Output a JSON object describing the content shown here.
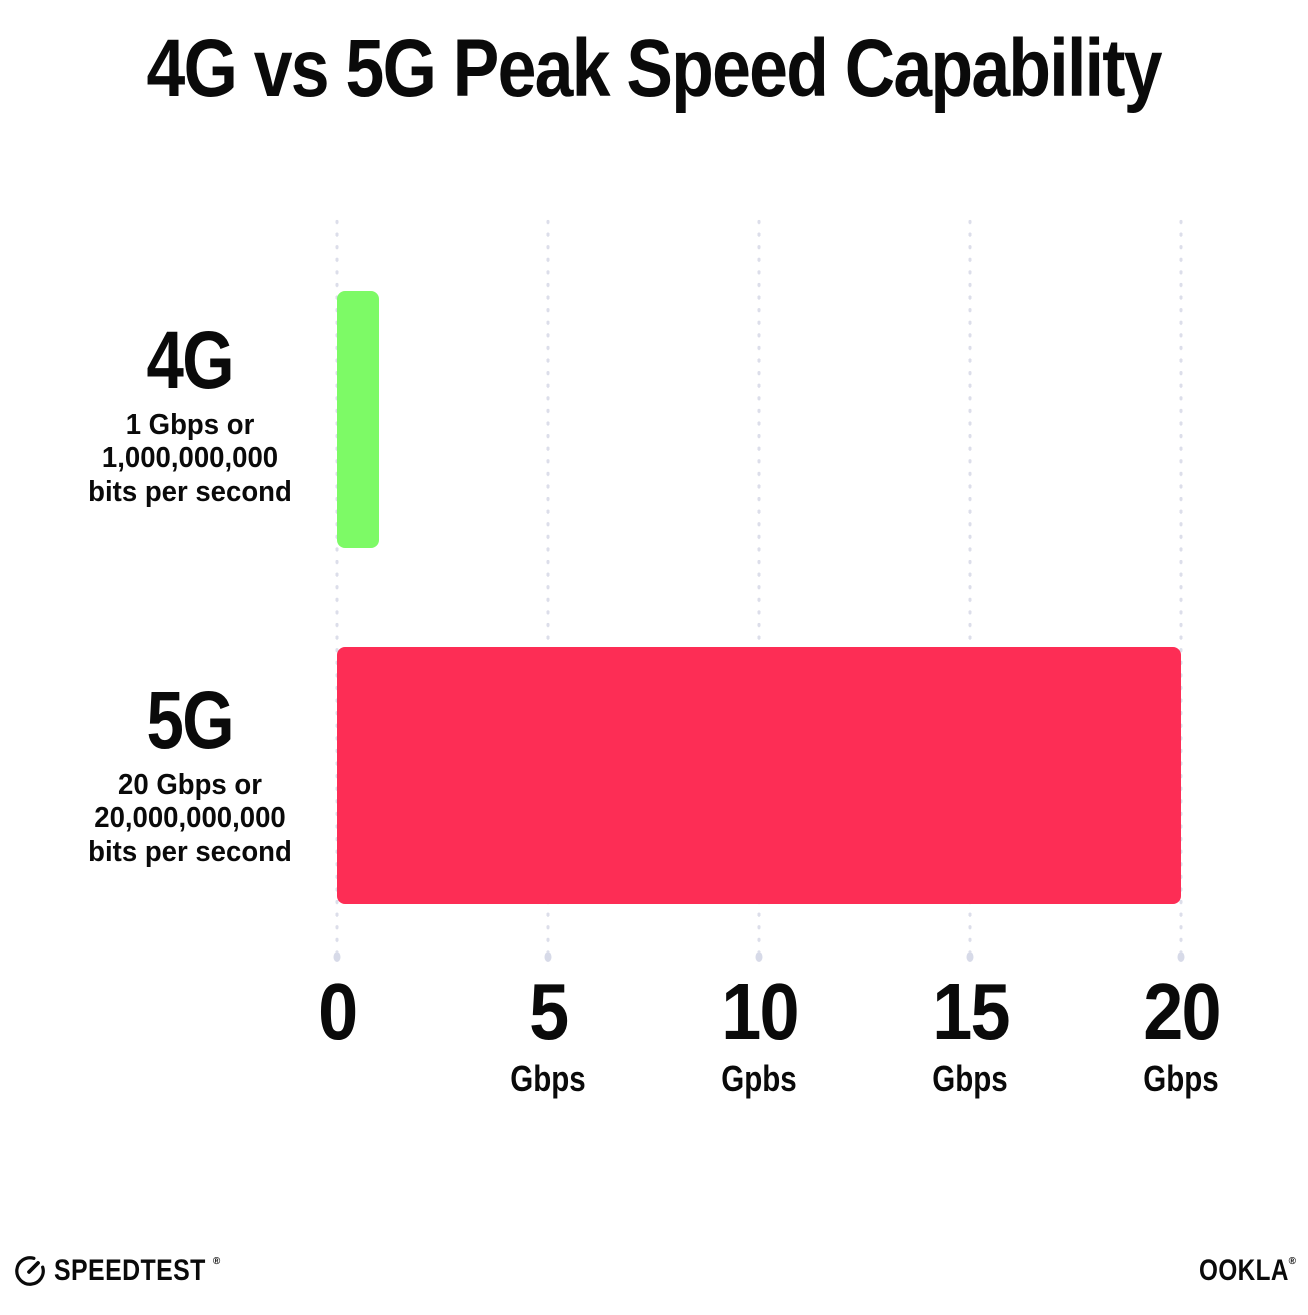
{
  "title": "4G vs 5G Peak Speed Capability",
  "chart_data": {
    "type": "bar",
    "orientation": "horizontal",
    "title": "4G vs 5G Peak Speed Capability",
    "categories": [
      "4G",
      "5G"
    ],
    "values": [
      1,
      20
    ],
    "value_unit": "Gbps",
    "bar_colors": [
      "#7DFA66",
      "#FD2D55"
    ],
    "xlim": [
      0,
      20
    ],
    "x_ticks": [
      0,
      5,
      10,
      15,
      20
    ],
    "x_tick_units": [
      "",
      "Gbps",
      "Gpbs",
      "Gbps",
      "Gbps"
    ],
    "grid": "vertical dotted gridlines at each tick",
    "legend": "none",
    "category_descriptions": [
      "1 Gbps or 1,000,000,000 bits per second",
      "20 Gbps or 20,000,000,000 bits per second"
    ]
  },
  "rows": [
    {
      "label": "4G",
      "desc_lines": [
        "1 Gbps or",
        "1,000,000,000",
        "bits per second"
      ],
      "value": 1,
      "color": "#7DFA66"
    },
    {
      "label": "5G",
      "desc_lines": [
        "20 Gbps or",
        "20,000,000,000",
        "bits per second"
      ],
      "value": 20,
      "color": "#FD2D55"
    }
  ],
  "x_axis": {
    "ticks": [
      {
        "number": "0",
        "unit": ""
      },
      {
        "number": "5",
        "unit": "Gbps"
      },
      {
        "number": "10",
        "unit": "Gpbs"
      },
      {
        "number": "15",
        "unit": "Gbps"
      },
      {
        "number": "20",
        "unit": "Gbps"
      }
    ]
  },
  "footer": {
    "speedtest_label": "SPEEDTEST",
    "speedtest_mark": "®",
    "ookla_label": "OOKLA",
    "ookla_mark": "®"
  },
  "colors": {
    "bar_4g": "#7DFA66",
    "bar_5g": "#FD2D55",
    "gridline_dot": "#DCDEEA",
    "gridline_end_dot": "#D7DAE8",
    "text": "#0A0A0A",
    "background": "#FFFFFF"
  }
}
